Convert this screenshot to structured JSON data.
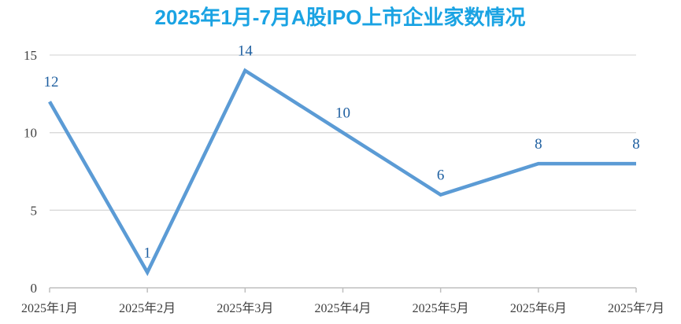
{
  "chart_data": {
    "type": "line",
    "title": "2025年1月-7月A股IPO上市企业家数情况",
    "xlabel": "",
    "ylabel": "",
    "categories": [
      "2025年1月",
      "2025年2月",
      "2025年3月",
      "2025年4月",
      "2025年5月",
      "2025年6月",
      "2025年7月"
    ],
    "values": [
      12,
      1,
      14,
      10,
      6,
      8,
      8
    ],
    "ylim": [
      0,
      15
    ],
    "yticks": [
      0,
      5,
      10,
      15
    ],
    "grid": true,
    "data_labels": true,
    "legend": "none",
    "colors": {
      "title": "#1aa3e3",
      "line": "#5b9bd5",
      "data_label": "#1e5fa0",
      "gridline": "#d9d9d9",
      "axis": "#bfbfbf"
    }
  }
}
